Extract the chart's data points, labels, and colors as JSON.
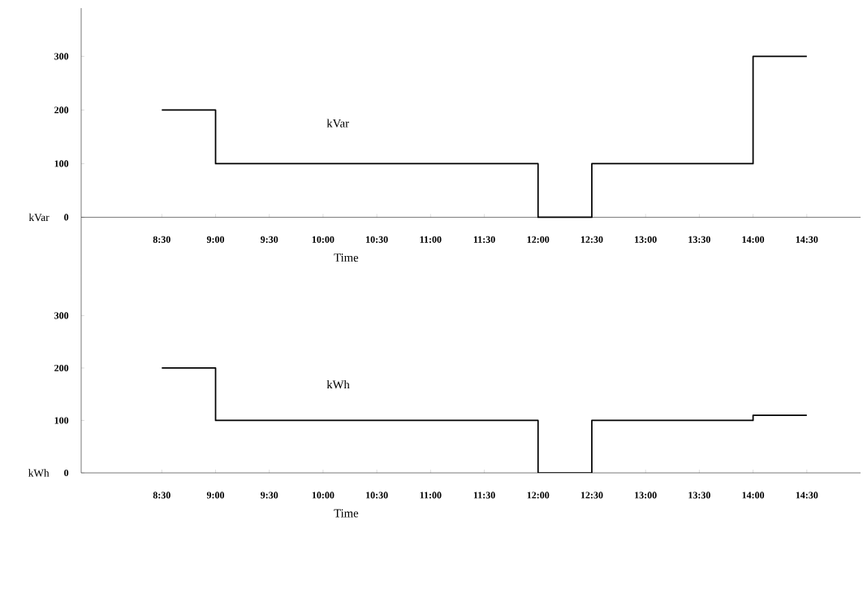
{
  "chart_data": [
    {
      "type": "step",
      "xlabel": "Time",
      "ylabel": "kVar",
      "x": [
        8.5,
        9,
        12,
        12.5,
        14,
        14.5
      ],
      "series": [
        {
          "name": "kVar",
          "color": "#000000",
          "values": [
            200,
            100,
            0,
            100,
            300,
            300
          ]
        }
      ],
      "xlim": [
        7.75,
        15
      ],
      "ylim": [
        -110,
        390
      ],
      "xticks": [
        {
          "value": 8.5,
          "label": "8:30"
        },
        {
          "value": 9,
          "label": "9:00"
        },
        {
          "value": 9.5,
          "label": "9:30"
        },
        {
          "value": 10,
          "label": "10:00"
        },
        {
          "value": 10.5,
          "label": "10:30"
        },
        {
          "value": 11,
          "label": "11:00"
        },
        {
          "value": 11.5,
          "label": "11:30"
        },
        {
          "value": 12,
          "label": "12:00"
        },
        {
          "value": 12.5,
          "label": "12:30"
        },
        {
          "value": 13,
          "label": "13:00"
        },
        {
          "value": 13.5,
          "label": "13:30"
        },
        {
          "value": 14,
          "label": "14:00"
        },
        {
          "value": 14.5,
          "label": "14:30"
        }
      ],
      "yticks": [
        0,
        100,
        200,
        300
      ],
      "grid": false,
      "legend": false
    },
    {
      "type": "step",
      "xlabel": "Time",
      "ylabel": "kWh",
      "x": [
        8.5,
        9,
        12,
        12.5,
        14,
        14.5
      ],
      "series": [
        {
          "name": "kWh",
          "color": "#000000",
          "values": [
            200,
            100,
            0,
            100,
            110,
            110
          ]
        }
      ],
      "xlim": [
        7.75,
        15
      ],
      "ylim": [
        0,
        375
      ],
      "xticks": [
        {
          "value": 8.5,
          "label": "8:30"
        },
        {
          "value": 9,
          "label": "9:00"
        },
        {
          "value": 9.5,
          "label": "9:30"
        },
        {
          "value": 10,
          "label": "10:00"
        },
        {
          "value": 10.5,
          "label": "10:30"
        },
        {
          "value": 11,
          "label": "11:00"
        },
        {
          "value": 11.5,
          "label": "11:30"
        },
        {
          "value": 12,
          "label": "12:00"
        },
        {
          "value": 12.5,
          "label": "12:30"
        },
        {
          "value": 13,
          "label": "13:00"
        },
        {
          "value": 13.5,
          "label": "13:30"
        },
        {
          "value": 14,
          "label": "14:00"
        },
        {
          "value": 14.5,
          "label": "14:30"
        }
      ],
      "yticks": [
        0,
        100,
        200,
        300
      ],
      "grid": false,
      "legend": false
    }
  ]
}
